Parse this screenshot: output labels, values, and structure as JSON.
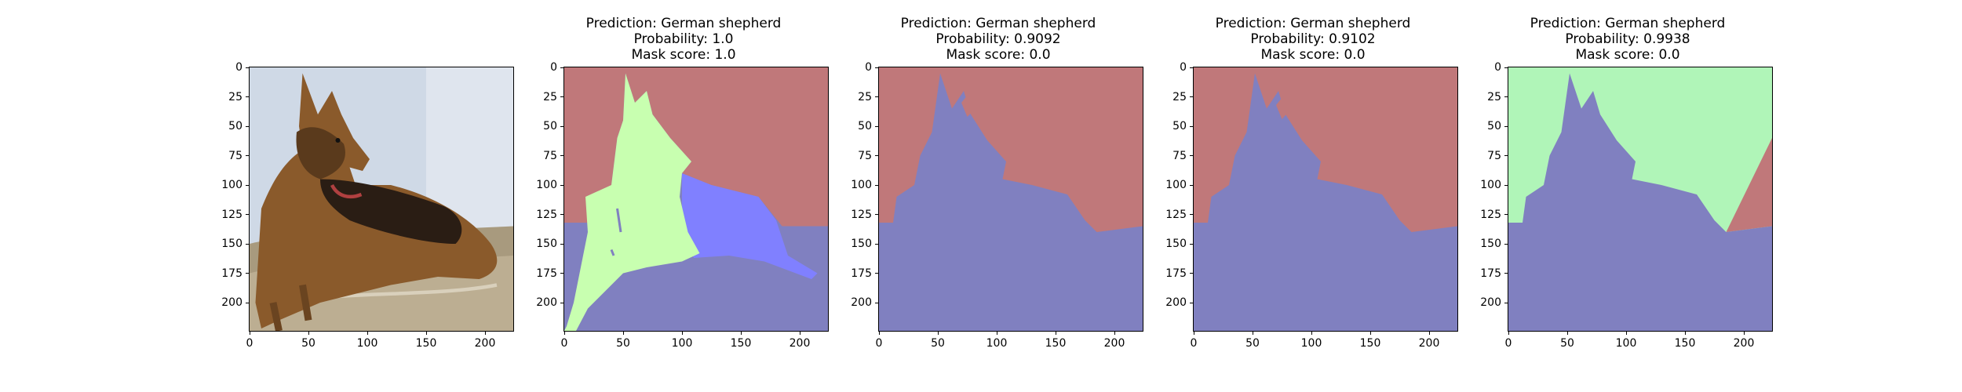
{
  "chart_data": [
    {
      "type": "image",
      "subplot": 1,
      "title_lines": [],
      "image": "photo of a German shepherd dog lying on a beige cushion",
      "xlim": [
        0,
        224
      ],
      "ylim": [
        224,
        0
      ],
      "xticks": [
        0,
        50,
        100,
        150,
        200
      ],
      "yticks": [
        0,
        25,
        50,
        75,
        100,
        125,
        150,
        175,
        200
      ]
    },
    {
      "type": "image",
      "subplot": 2,
      "title_lines": [
        "Prediction: German shepherd",
        "Probability: 1.0",
        "Mask score: 1.0"
      ],
      "prediction": "German shepherd",
      "probability": 1.0,
      "mask_score": 1.0,
      "image": "segmentation mask overlay: red background, light-green dog region, blue foreground region",
      "xlim": [
        0,
        224
      ],
      "ylim": [
        224,
        0
      ],
      "xticks": [
        0,
        50,
        100,
        150,
        200
      ],
      "yticks": [
        0,
        25,
        50,
        75,
        100,
        125,
        150,
        175,
        200
      ]
    },
    {
      "type": "image",
      "subplot": 3,
      "title_lines": [
        "Prediction: German shepherd",
        "Probability: 0.9092",
        "Mask score: 0.0"
      ],
      "prediction": "German shepherd",
      "probability": 0.9092,
      "mask_score": 0.0,
      "image": "segmentation mask overlay: red background, blue dog and lower region",
      "xlim": [
        0,
        224
      ],
      "ylim": [
        224,
        0
      ],
      "xticks": [
        0,
        50,
        100,
        150,
        200
      ],
      "yticks": [
        0,
        25,
        50,
        75,
        100,
        125,
        150,
        175,
        200
      ]
    },
    {
      "type": "image",
      "subplot": 4,
      "title_lines": [
        "Prediction: German shepherd",
        "Probability: 0.9102",
        "Mask score: 0.0"
      ],
      "prediction": "German shepherd",
      "probability": 0.9102,
      "mask_score": 0.0,
      "image": "segmentation mask overlay: red background, blue dog and lower region",
      "xlim": [
        0,
        224
      ],
      "ylim": [
        224,
        0
      ],
      "xticks": [
        0,
        50,
        100,
        150,
        200
      ],
      "yticks": [
        0,
        25,
        50,
        75,
        100,
        125,
        150,
        175,
        200
      ]
    },
    {
      "type": "image",
      "subplot": 5,
      "title_lines": [
        "Prediction: German shepherd",
        "Probability: 0.9938",
        "Mask score: 0.0"
      ],
      "prediction": "German shepherd",
      "probability": 0.9938,
      "mask_score": 0.0,
      "image": "segmentation mask overlay: light-green background, blue dog and lower region, red wedge at right",
      "xlim": [
        0,
        224
      ],
      "ylim": [
        224,
        0
      ],
      "xticks": [
        0,
        50,
        100,
        150,
        200
      ],
      "yticks": [
        0,
        25,
        50,
        75,
        100,
        125,
        150,
        175,
        200
      ]
    }
  ],
  "colors": {
    "mask_red": "#c0787a",
    "mask_blue": "#8080c0",
    "mask_bright_blue": "#8080ff",
    "mask_green_light": "#c8ffb0",
    "mask_green_pale": "#b0f5b8",
    "photo_wall": "#cfd9e6",
    "photo_cushion": "#a89a7e",
    "photo_dog_tan": "#8a5a2b",
    "photo_dog_dark": "#2a1d14"
  }
}
